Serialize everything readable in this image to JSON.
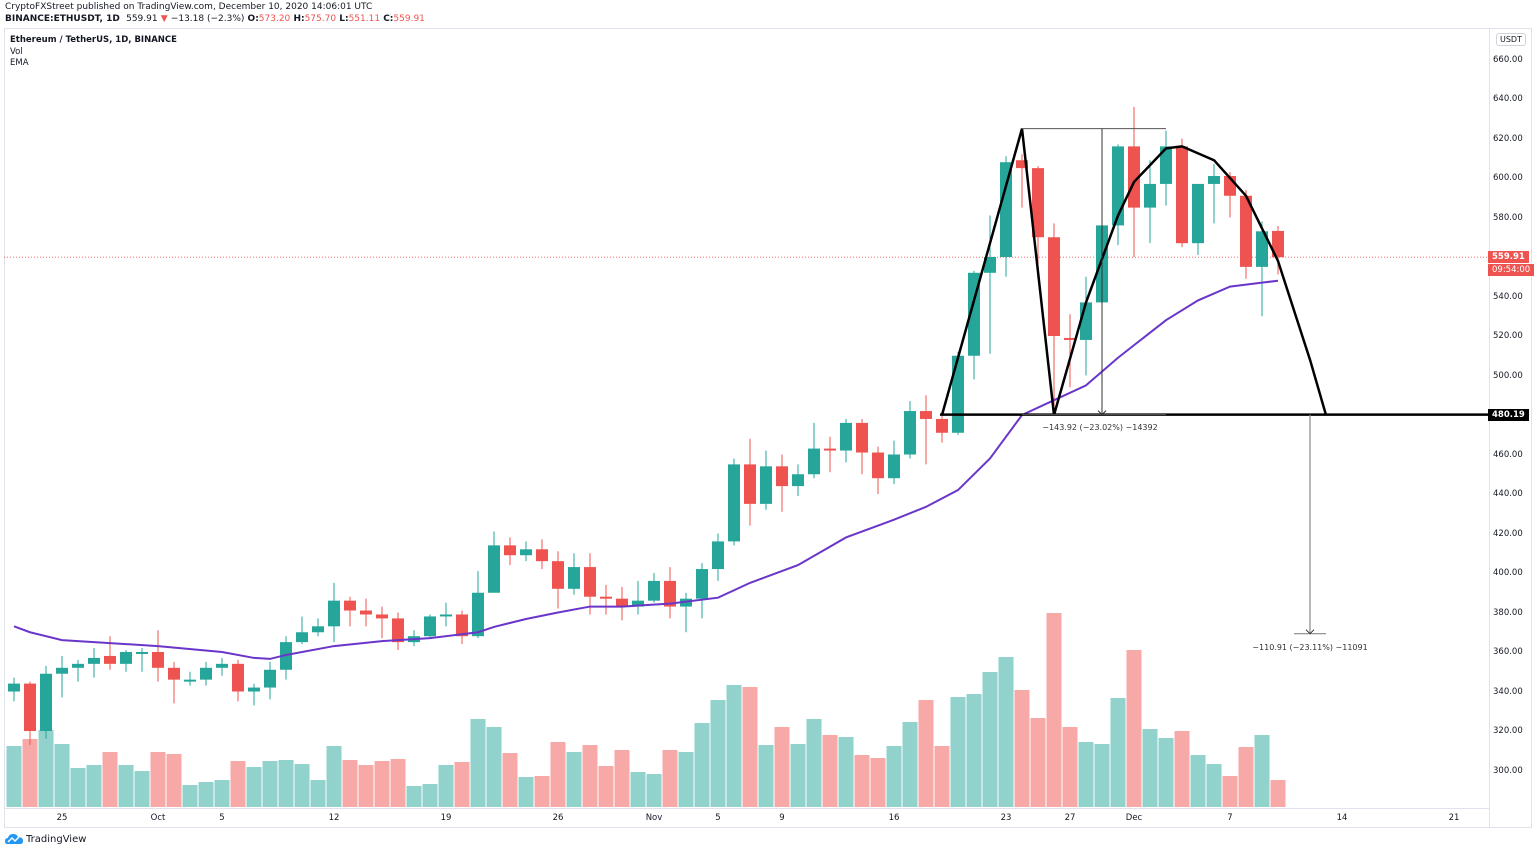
{
  "header": {
    "publish_line": "CryptoFXStreet published on TradingView.com, December 10, 2020 14:06:01 UTC",
    "symbol": "BINANCE:ETHUSDT, 1D",
    "last": "559.91",
    "change": "−13.18 (−2.3%)",
    "change_direction_icon": "triangle-down-icon",
    "open_label": "O:",
    "open": "573.20",
    "high_label": "H:",
    "high": "575.70",
    "low_label": "L:",
    "low": "551.11",
    "close_label": "C:",
    "close": "559.91"
  },
  "legend": {
    "title": "Ethereum / TetherUS, 1D, BINANCE",
    "vol": "Vol",
    "ema": "EMA"
  },
  "currency_button": "USDT",
  "brand": "TradingView",
  "colors": {
    "up": "#26a69a",
    "down": "#ef5350",
    "up_vol": "#92d2cc",
    "down_vol": "#f7a9a7",
    "ema": "#6a35c9",
    "annotation": "#000000"
  },
  "chart_data": {
    "type": "candlestick",
    "ylim": [
      280,
      670
    ],
    "y_ticks": [
      "660.00",
      "640.00",
      "620.00",
      "600.00",
      "580.00",
      "560.00",
      "540.00",
      "520.00",
      "500.00",
      "480.00",
      "460.00",
      "440.00",
      "420.00",
      "400.00",
      "380.00",
      "360.00",
      "340.00",
      "320.00",
      "300.00"
    ],
    "x_ticks": [
      {
        "date": "2020-09-25",
        "label": "25"
      },
      {
        "date": "2020-10-01",
        "label": "Oct"
      },
      {
        "date": "2020-10-05",
        "label": "5"
      },
      {
        "date": "2020-10-12",
        "label": "12"
      },
      {
        "date": "2020-10-19",
        "label": "19"
      },
      {
        "date": "2020-10-26",
        "label": "26"
      },
      {
        "date": "2020-11-01",
        "label": "Nov"
      },
      {
        "date": "2020-11-05",
        "label": "5"
      },
      {
        "date": "2020-11-09",
        "label": "9"
      },
      {
        "date": "2020-11-16",
        "label": "16"
      },
      {
        "date": "2020-11-23",
        "label": "23"
      },
      {
        "date": "2020-11-27",
        "label": "27"
      },
      {
        "date": "2020-12-01",
        "label": "Dec"
      },
      {
        "date": "2020-12-07",
        "label": "7"
      },
      {
        "date": "2020-12-14",
        "label": "14"
      },
      {
        "date": "2020-12-21",
        "label": "21"
      }
    ],
    "candle_fields": [
      "date",
      "open",
      "high",
      "low",
      "close",
      "volume_relative"
    ],
    "candles": [
      [
        "2020-09-22",
        340,
        347,
        335,
        344,
        61
      ],
      [
        "2020-09-23",
        344,
        345,
        313,
        320,
        68
      ],
      [
        "2020-09-24",
        320,
        353,
        316,
        349,
        77
      ],
      [
        "2020-09-25",
        349,
        358,
        337,
        352,
        63
      ],
      [
        "2020-09-26",
        352,
        356,
        345,
        354,
        39
      ],
      [
        "2020-09-27",
        354,
        362,
        347,
        357,
        42
      ],
      [
        "2020-09-28",
        358,
        368,
        351,
        354,
        55
      ],
      [
        "2020-09-29",
        354,
        361,
        350,
        360,
        42
      ],
      [
        "2020-09-30",
        359,
        362,
        350,
        360,
        36
      ],
      [
        "2020-10-01",
        360,
        371,
        345,
        352,
        55
      ],
      [
        "2020-10-02",
        352,
        355,
        334,
        346,
        53
      ],
      [
        "2020-10-03",
        345,
        350,
        343,
        346,
        22
      ],
      [
        "2020-10-04",
        346,
        355,
        343,
        352,
        25
      ],
      [
        "2020-10-05",
        352,
        357,
        348,
        354,
        27
      ],
      [
        "2020-10-06",
        354,
        356,
        335,
        340,
        46
      ],
      [
        "2020-10-07",
        340,
        344,
        333,
        342,
        40
      ],
      [
        "2020-10-08",
        342,
        355,
        336,
        351,
        46
      ],
      [
        "2020-10-09",
        351,
        368,
        346,
        365,
        47
      ],
      [
        "2020-10-10",
        365,
        378,
        364,
        370,
        43
      ],
      [
        "2020-10-11",
        370,
        377,
        368,
        373,
        27
      ],
      [
        "2020-10-12",
        373,
        395,
        365,
        386,
        61
      ],
      [
        "2020-10-13",
        386,
        388,
        373,
        381,
        47
      ],
      [
        "2020-10-14",
        381,
        387,
        373,
        379,
        42
      ],
      [
        "2020-10-15",
        379,
        383,
        367,
        377,
        46
      ],
      [
        "2020-10-16",
        377,
        380,
        361,
        365,
        48
      ],
      [
        "2020-10-17",
        365,
        371,
        363,
        368,
        21
      ],
      [
        "2020-10-18",
        368,
        379,
        367,
        378,
        23
      ],
      [
        "2020-10-19",
        378,
        385,
        373,
        379,
        42
      ],
      [
        "2020-10-20",
        379,
        381,
        364,
        368,
        45
      ],
      [
        "2020-10-21",
        368,
        401,
        367,
        390,
        88
      ],
      [
        "2020-10-22",
        390,
        421,
        390,
        414,
        80
      ],
      [
        "2020-10-23",
        414,
        418,
        404,
        409,
        54
      ],
      [
        "2020-10-24",
        409,
        416,
        406,
        412,
        30
      ],
      [
        "2020-10-25",
        412,
        417,
        402,
        406,
        31
      ],
      [
        "2020-10-26",
        406,
        411,
        382,
        392,
        65
      ],
      [
        "2020-10-27",
        392,
        410,
        389,
        403,
        55
      ],
      [
        "2020-10-28",
        403,
        410,
        379,
        388,
        62
      ],
      [
        "2020-10-29",
        388,
        394,
        379,
        387,
        41
      ],
      [
        "2020-10-30",
        387,
        393,
        376,
        383,
        57
      ],
      [
        "2020-10-31",
        383,
        396,
        379,
        386,
        35
      ],
      [
        "2020-11-01",
        386,
        400,
        385,
        396,
        33
      ],
      [
        "2020-11-02",
        396,
        403,
        377,
        383,
        57
      ],
      [
        "2020-11-03",
        383,
        390,
        370,
        387,
        55
      ],
      [
        "2020-11-04",
        387,
        405,
        377,
        402,
        84
      ],
      [
        "2020-11-05",
        402,
        420,
        396,
        416,
        107
      ],
      [
        "2020-11-06",
        416,
        458,
        414,
        455,
        122
      ],
      [
        "2020-11-07",
        455,
        468,
        424,
        435,
        120
      ],
      [
        "2020-11-08",
        435,
        462,
        432,
        454,
        62
      ],
      [
        "2020-11-09",
        454,
        460,
        431,
        444,
        80
      ],
      [
        "2020-11-10",
        444,
        455,
        439,
        450,
        63
      ],
      [
        "2020-11-11",
        450,
        476,
        448,
        463,
        88
      ],
      [
        "2020-11-12",
        463,
        469,
        451,
        462,
        72
      ],
      [
        "2020-11-13",
        462,
        478,
        456,
        476,
        70
      ],
      [
        "2020-11-14",
        476,
        478,
        450,
        461,
        52
      ],
      [
        "2020-11-15",
        461,
        464,
        440,
        448,
        49
      ],
      [
        "2020-11-16",
        448,
        467,
        445,
        460,
        61
      ],
      [
        "2020-11-17",
        460,
        487,
        458,
        482,
        85
      ],
      [
        "2020-11-18",
        482,
        490,
        455,
        478,
        107
      ],
      [
        "2020-11-19",
        478,
        481,
        466,
        471,
        61
      ],
      [
        "2020-11-20",
        471,
        512,
        470,
        510,
        110
      ],
      [
        "2020-11-21",
        510,
        553,
        498,
        552,
        113
      ],
      [
        "2020-11-22",
        552,
        581,
        511,
        560,
        135
      ],
      [
        "2020-11-23",
        560,
        611,
        550,
        608,
        150
      ],
      [
        "2020-11-24",
        609,
        612,
        585,
        605,
        117
      ],
      [
        "2020-11-25",
        605,
        606,
        556,
        570,
        89
      ],
      [
        "2020-11-26",
        570,
        577,
        481,
        520,
        194
      ],
      [
        "2020-11-27",
        519,
        531,
        494,
        518,
        80
      ],
      [
        "2020-11-28",
        518,
        550,
        500,
        537,
        65
      ],
      [
        "2020-11-29",
        537,
        577,
        528,
        576,
        63
      ],
      [
        "2020-11-30",
        576,
        617,
        566,
        616,
        109
      ],
      [
        "2020-12-01",
        616,
        636,
        560,
        585,
        157
      ],
      [
        "2020-12-02",
        585,
        609,
        567,
        597,
        78
      ],
      [
        "2020-12-03",
        597,
        624,
        586,
        616,
        69
      ],
      [
        "2020-12-04",
        616,
        620,
        565,
        567,
        76
      ],
      [
        "2020-12-05",
        567,
        597,
        561,
        597,
        52
      ],
      [
        "2020-12-06",
        597,
        607,
        577,
        601,
        43
      ],
      [
        "2020-12-07",
        601,
        603,
        580,
        591,
        31
      ],
      [
        "2020-12-08",
        591,
        594,
        549,
        555,
        60
      ],
      [
        "2020-12-09",
        555,
        578,
        530,
        573,
        72
      ],
      [
        "2020-12-10",
        573.2,
        575.7,
        551.11,
        559.91,
        27
      ]
    ],
    "ema": [
      [
        "2020-09-22",
        373
      ],
      [
        "2020-09-23",
        370
      ],
      [
        "2020-09-25",
        366
      ],
      [
        "2020-09-28",
        364.5
      ],
      [
        "2020-10-01",
        363
      ],
      [
        "2020-10-05",
        360
      ],
      [
        "2020-10-07",
        357
      ],
      [
        "2020-10-08",
        356.5
      ],
      [
        "2020-10-09",
        358.5
      ],
      [
        "2020-10-12",
        363
      ],
      [
        "2020-10-15",
        365.5
      ],
      [
        "2020-10-18",
        367
      ],
      [
        "2020-10-21",
        370
      ],
      [
        "2020-10-22",
        372.7
      ],
      [
        "2020-10-24",
        376.7
      ],
      [
        "2020-10-26",
        380
      ],
      [
        "2020-10-28",
        383
      ],
      [
        "2020-10-30",
        383
      ],
      [
        "2020-11-02",
        384.5
      ],
      [
        "2020-11-05",
        387.5
      ],
      [
        "2020-11-07",
        395
      ],
      [
        "2020-11-10",
        404
      ],
      [
        "2020-11-13",
        418
      ],
      [
        "2020-11-16",
        427
      ],
      [
        "2020-11-18",
        433.5
      ],
      [
        "2020-11-20",
        442
      ],
      [
        "2020-11-22",
        458
      ],
      [
        "2020-11-24",
        480
      ],
      [
        "2020-11-26",
        487.5
      ],
      [
        "2020-11-28",
        495
      ],
      [
        "2020-11-30",
        509
      ],
      [
        "2020-12-03",
        528
      ],
      [
        "2020-12-05",
        538
      ],
      [
        "2020-12-07",
        545
      ],
      [
        "2020-12-09",
        547
      ],
      [
        "2020-12-10",
        548
      ]
    ],
    "current_price": {
      "value": 559.91,
      "label": "559.91",
      "countdown": "09:54:00"
    },
    "horizontal_line": {
      "value": 480.19,
      "label": "480.19"
    },
    "pattern_lines": [
      [
        "2020-11-19",
        480
      ],
      [
        "2020-11-24",
        625
      ],
      [
        "2020-11-26",
        480
      ]
    ],
    "arc": [
      [
        "2020-11-26",
        480
      ],
      [
        "2020-11-28",
        537
      ],
      [
        "2020-11-30",
        581
      ],
      [
        "2020-12-01",
        598
      ],
      [
        "2020-12-03",
        615
      ],
      [
        "2020-12-04",
        616
      ],
      [
        "2020-12-06",
        609
      ],
      [
        "2020-12-08",
        591
      ],
      [
        "2020-12-10",
        558
      ],
      [
        "2020-12-12",
        508
      ],
      [
        "2020-12-13",
        480
      ]
    ],
    "measure_1": {
      "from_date": "2020-11-24",
      "to_date": "2020-12-03",
      "arrow_date": "2020-11-29",
      "top": 625,
      "bottom": 480.19,
      "label": "−143.92 (−23.02%) −14392"
    },
    "measure_2": {
      "date": "2020-12-13",
      "top": 480.19,
      "bottom": 369.28,
      "label": "−110.91 (−23.11%) −11091"
    }
  }
}
